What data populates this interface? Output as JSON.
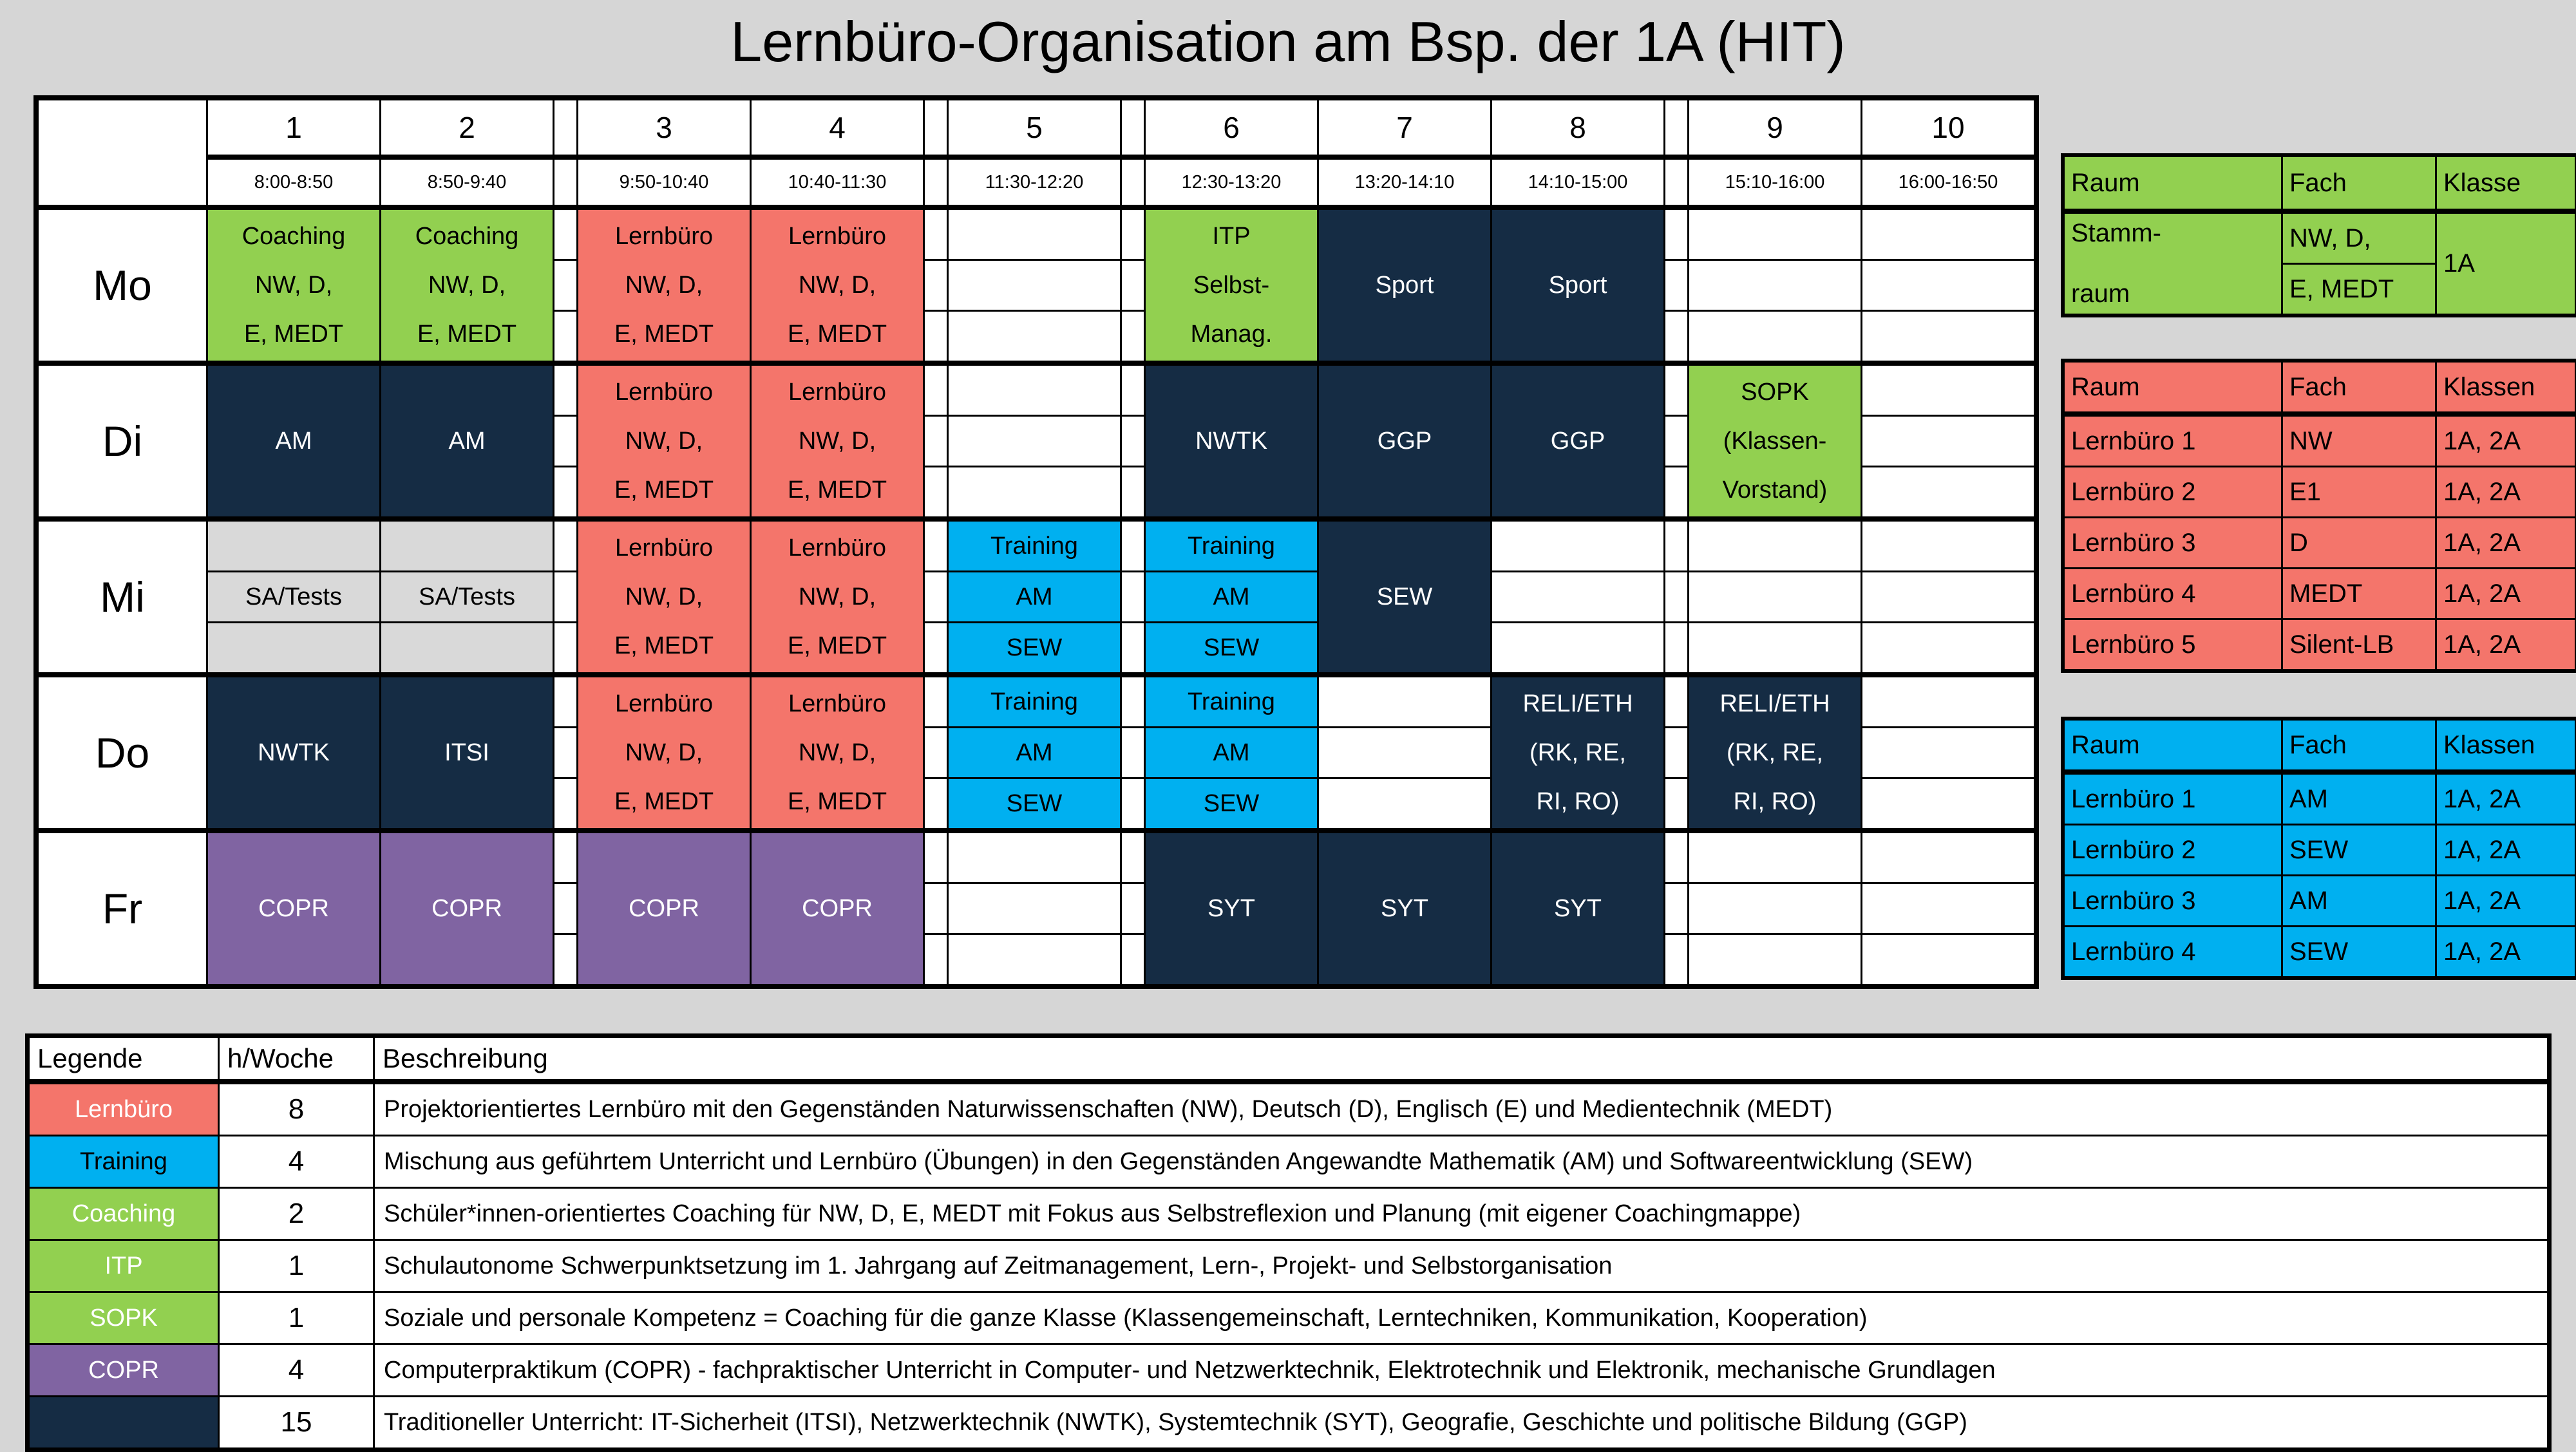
{
  "title": "Lernbüro-Organisation am Bsp. der 1A (HIT)",
  "palette": {
    "salmon": {
      "bg": "#f4756b",
      "fg": "#000000"
    },
    "green": {
      "bg": "#92d050",
      "fg": "#000000"
    },
    "blue": {
      "bg": "#00b0f0",
      "fg": "#000000"
    },
    "navy": {
      "bg": "#152c44",
      "fg": "#ffffff"
    },
    "purple": {
      "bg": "#8064a2",
      "fg": "#ffffff"
    },
    "gray": {
      "bg": "#d9d9d9",
      "fg": "#000000"
    },
    "white": {
      "bg": "#ffffff",
      "fg": "#000000"
    },
    "legend_label_white_text": "#ffffff",
    "background": "#d6d6d6"
  },
  "timetable": {
    "periods": [
      {
        "num": "1",
        "time": "8:00-8:50"
      },
      {
        "num": "2",
        "time": "8:50-9:40"
      },
      {
        "num": "3",
        "time": "9:50-10:40"
      },
      {
        "num": "4",
        "time": "10:40-11:30"
      },
      {
        "num": "5",
        "time": "11:30-12:20"
      },
      {
        "num": "6",
        "time": "12:30-13:20"
      },
      {
        "num": "7",
        "time": "13:20-14:10"
      },
      {
        "num": "8",
        "time": "14:10-15:00"
      },
      {
        "num": "9",
        "time": "15:10-16:00"
      },
      {
        "num": "10",
        "time": "16:00-16:50"
      }
    ],
    "days": [
      {
        "label": "Mo",
        "cells": [
          {
            "type": "green",
            "lines": [
              "Coaching",
              "NW, D,",
              "E, MEDT"
            ]
          },
          {
            "type": "green",
            "lines": [
              "Coaching",
              "NW, D,",
              "E, MEDT"
            ]
          },
          {
            "type": "salmon",
            "lines": [
              "Lernbüro",
              "NW, D,",
              "E, MEDT"
            ]
          },
          {
            "type": "salmon",
            "lines": [
              "Lernbüro",
              "NW, D,",
              "E, MEDT"
            ]
          },
          {
            "type": "empty"
          },
          {
            "type": "green",
            "lines": [
              "ITP",
              "Selbst-",
              "Manag."
            ]
          },
          {
            "type": "navy",
            "lines": [
              "Sport"
            ]
          },
          {
            "type": "navy",
            "lines": [
              "Sport"
            ]
          },
          {
            "type": "empty"
          },
          {
            "type": "empty"
          }
        ]
      },
      {
        "label": "Di",
        "cells": [
          {
            "type": "navy",
            "lines": [
              "AM"
            ]
          },
          {
            "type": "navy",
            "lines": [
              "AM"
            ]
          },
          {
            "type": "salmon",
            "lines": [
              "Lernbüro",
              "NW, D,",
              "E, MEDT"
            ]
          },
          {
            "type": "salmon",
            "lines": [
              "Lernbüro",
              "NW, D,",
              "E, MEDT"
            ]
          },
          {
            "type": "empty"
          },
          {
            "type": "navy",
            "lines": [
              "NWTK"
            ]
          },
          {
            "type": "navy",
            "lines": [
              "GGP"
            ]
          },
          {
            "type": "navy",
            "lines": [
              "GGP"
            ]
          },
          {
            "type": "green",
            "lines": [
              "SOPK",
              "(Klassen-",
              "Vorstand)"
            ]
          },
          {
            "type": "empty"
          }
        ]
      },
      {
        "label": "Mi",
        "cells": [
          {
            "type": "gray",
            "sub": [
              "",
              "SA/Tests",
              ""
            ]
          },
          {
            "type": "gray",
            "sub": [
              "",
              "SA/Tests",
              ""
            ]
          },
          {
            "type": "salmon",
            "lines": [
              "Lernbüro",
              "NW, D,",
              "E, MEDT"
            ]
          },
          {
            "type": "salmon",
            "lines": [
              "Lernbüro",
              "NW, D,",
              "E, MEDT"
            ]
          },
          {
            "type": "blue",
            "sub": [
              "Training",
              "AM",
              "SEW"
            ]
          },
          {
            "type": "blue",
            "sub": [
              "Training",
              "AM",
              "SEW"
            ]
          },
          {
            "type": "navy",
            "lines": [
              "SEW"
            ]
          },
          {
            "type": "empty"
          },
          {
            "type": "empty"
          },
          {
            "type": "empty"
          }
        ]
      },
      {
        "label": "Do",
        "cells": [
          {
            "type": "navy",
            "lines": [
              "NWTK"
            ]
          },
          {
            "type": "navy",
            "lines": [
              "ITSI"
            ]
          },
          {
            "type": "salmon",
            "lines": [
              "Lernbüro",
              "NW, D,",
              "E, MEDT"
            ]
          },
          {
            "type": "salmon",
            "lines": [
              "Lernbüro",
              "NW, D,",
              "E, MEDT"
            ]
          },
          {
            "type": "blue",
            "sub": [
              "Training",
              "AM",
              "SEW"
            ]
          },
          {
            "type": "blue",
            "sub": [
              "Training",
              "AM",
              "SEW"
            ]
          },
          {
            "type": "empty"
          },
          {
            "type": "navy",
            "lines": [
              "RELI/ETH",
              "(RK, RE,",
              "RI, RO)"
            ]
          },
          {
            "type": "navy",
            "lines": [
              "RELI/ETH",
              "(RK, RE,",
              "RI, RO)"
            ]
          },
          {
            "type": "empty"
          }
        ]
      },
      {
        "label": "Fr",
        "cells": [
          {
            "type": "purple",
            "lines": [
              "COPR"
            ]
          },
          {
            "type": "purple",
            "lines": [
              "COPR"
            ]
          },
          {
            "type": "purple",
            "lines": [
              "COPR"
            ]
          },
          {
            "type": "purple",
            "lines": [
              "COPR"
            ]
          },
          {
            "type": "empty"
          },
          {
            "type": "navy",
            "lines": [
              "SYT"
            ]
          },
          {
            "type": "navy",
            "lines": [
              "SYT"
            ]
          },
          {
            "type": "navy",
            "lines": [
              "SYT"
            ]
          },
          {
            "type": "empty"
          },
          {
            "type": "empty"
          }
        ]
      }
    ]
  },
  "stammraum_table": {
    "color": "green",
    "headers": [
      "Raum",
      "Fach",
      "Klasse"
    ],
    "raum": [
      "Stamm-",
      "raum"
    ],
    "fach": [
      "NW, D,",
      "E, MEDT"
    ],
    "klasse": "1A"
  },
  "room_tables": [
    {
      "color": "salmon",
      "headers": [
        "Raum",
        "Fach",
        "Klassen"
      ],
      "rows": [
        [
          "Lernbüro 1",
          "NW",
          "1A, 2A"
        ],
        [
          "Lernbüro 2",
          "E1",
          "1A, 2A"
        ],
        [
          "Lernbüro 3",
          "D",
          "1A, 2A"
        ],
        [
          "Lernbüro 4",
          "MEDT",
          "1A, 2A"
        ],
        [
          "Lernbüro 5",
          "Silent-LB",
          "1A, 2A"
        ]
      ]
    },
    {
      "color": "blue",
      "headers": [
        "Raum",
        "Fach",
        "Klassen"
      ],
      "rows": [
        [
          "Lernbüro 1",
          "AM",
          "1A, 2A"
        ],
        [
          "Lernbüro 2",
          "SEW",
          "1A, 2A"
        ],
        [
          "Lernbüro 3",
          "AM",
          "1A, 2A"
        ],
        [
          "Lernbüro 4",
          "SEW",
          "1A, 2A"
        ]
      ]
    }
  ],
  "legend": {
    "headers": [
      "Legende",
      "h/Woche",
      "Beschreibung"
    ],
    "rows": [
      {
        "label": "Lernbüro",
        "color": "salmon",
        "label_fg": "#ffffff",
        "h": "8",
        "desc": "Projektorientiertes Lernbüro mit den Gegenständen Naturwissenschaften (NW), Deutsch (D), Englisch (E) und Medientechnik (MEDT)"
      },
      {
        "label": "Training",
        "color": "blue",
        "label_fg": "#000000",
        "h": "4",
        "desc": "Mischung aus geführtem Unterricht und Lernbüro (Übungen) in den Gegenständen Angewandte Mathematik (AM) und Softwareentwicklung (SEW)"
      },
      {
        "label": "Coaching",
        "color": "green",
        "label_fg": "#ffffff",
        "h": "2",
        "desc": "Schüler*innen-orientiertes Coaching für NW, D, E, MEDT mit Fokus aus Selbstreflexion und Planung (mit eigener Coachingmappe)"
      },
      {
        "label": "ITP",
        "color": "green",
        "label_fg": "#ffffff",
        "h": "1",
        "desc": "Schulautonome Schwerpunktsetzung im 1. Jahrgang auf Zeitmanagement, Lern-, Projekt- und Selbstorganisation"
      },
      {
        "label": "SOPK",
        "color": "green",
        "label_fg": "#ffffff",
        "h": "1",
        "desc": "Soziale und personale Kompetenz  = Coaching für die ganze Klasse (Klassengemeinschaft, Lerntechniken, Kommunikation, Kooperation)"
      },
      {
        "label": "COPR",
        "color": "purple",
        "label_fg": "#ffffff",
        "h": "4",
        "desc": "Computerpraktikum (COPR) - fachpraktischer Unterricht in Computer- und Netzwerktechnik, Elektrotechnik und Elektronik, mechanische Grundlagen"
      },
      {
        "label": "",
        "color": "navy",
        "label_fg": "#ffffff",
        "h": "15",
        "desc": "Traditioneller Unterricht: IT-Sicherheit (ITSI), Netzwerktechnik (NWTK), Systemtechnik (SYT), Geografie, Geschichte und politische Bildung (GGP)"
      }
    ]
  }
}
